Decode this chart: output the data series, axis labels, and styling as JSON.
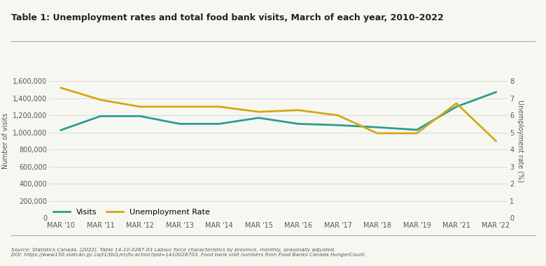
{
  "title": "Table 1: Unemployment rates and total food bank visits, March of each year, 2010–2022",
  "years": [
    "MAR '10",
    "MAR '11",
    "MAR '12",
    "MAR '13",
    "MAR '14",
    "MAR '15",
    "MAR '16",
    "MAR '17",
    "MAR '18",
    "MAR '19",
    "MAR '21",
    "MAR '22"
  ],
  "visits": [
    1027000,
    1190000,
    1190000,
    1100000,
    1100000,
    1170000,
    1100000,
    1085000,
    1060000,
    1030000,
    1300000,
    1470000
  ],
  "unemployment": [
    7.6,
    6.9,
    6.5,
    6.5,
    6.5,
    6.2,
    6.3,
    6.0,
    4.95,
    4.95,
    6.7,
    4.5
  ],
  "visits_color": "#2a9d8f",
  "unemployment_color": "#d4a817",
  "ylabel_left": "Number of visits",
  "ylabel_right": "Unemployment rate (%)",
  "ylim_left": [
    0,
    1800000
  ],
  "ylim_right": [
    0,
    9
  ],
  "yticks_left": [
    0,
    200000,
    400000,
    600000,
    800000,
    1000000,
    1200000,
    1400000,
    1600000
  ],
  "yticks_right": [
    0,
    1,
    2,
    3,
    4,
    5,
    6,
    7,
    8
  ],
  "legend_visits": "Visits",
  "legend_unemployment": "Unemployment Rate",
  "source_line1": "Source: Statistics Canada. (2022). Table 14-10-0287-03 Labour force characteristics by province, monthly, seasonally adjusted.",
  "source_line2": "DOI: https://www150.statcan.gc.ca/t1/tbl1/en/tv.action?pid=1410028703. Food bank visit numbers from Food Banks Canada HungerCount.",
  "bg_color": "#f7f7f2",
  "grid_color": "#cccccc",
  "line_width": 2.0
}
